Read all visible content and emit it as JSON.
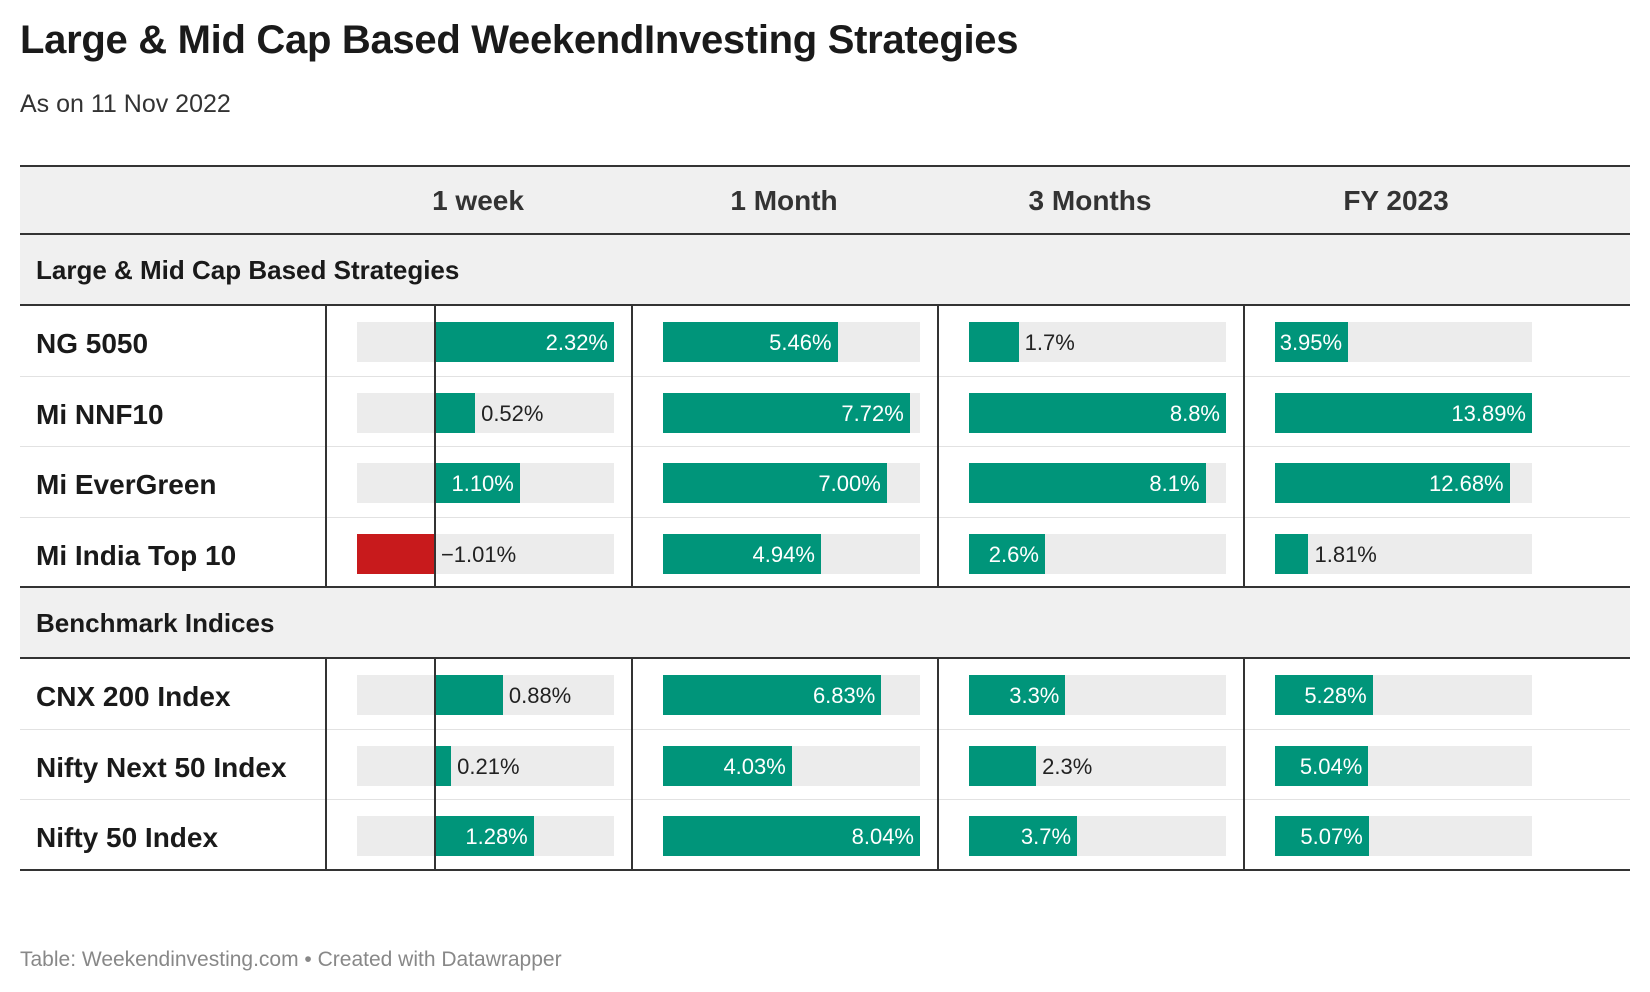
{
  "title": "Large & Mid Cap Based WeekendInvesting Strategies",
  "subtitle": "As on 11 Nov 2022",
  "footer": "Table: Weekendinvesting.com • Created with Datawrapper",
  "colors": {
    "positive": "#00957a",
    "negative": "#c81a1c",
    "track": "#ececec",
    "header_bg": "#f0f0f0"
  },
  "columns": [
    "1 week",
    "1 Month",
    "3 Months",
    "FY 2023"
  ],
  "chart_data": {
    "type": "table",
    "title": "Large & Mid Cap Based WeekendInvesting Strategies",
    "subtitle": "As on 11 Nov 2022",
    "columns": [
      "1 week",
      "1 Month",
      "3 Months",
      "FY 2023"
    ],
    "column_ranges": [
      [
        -1.01,
        2.32
      ],
      [
        0,
        8.04
      ],
      [
        0,
        8.8
      ],
      [
        0,
        13.89
      ]
    ],
    "groups": [
      {
        "name": "Large & Mid Cap Based Strategies",
        "rows": [
          {
            "name": "NG 5050",
            "values": [
              2.32,
              5.46,
              1.7,
              3.95
            ],
            "labels": [
              "2.32%",
              "5.46%",
              "1.7%",
              "3.95%"
            ]
          },
          {
            "name": "Mi NNF10",
            "values": [
              0.52,
              7.72,
              8.8,
              13.89
            ],
            "labels": [
              "0.52%",
              "7.72%",
              "8.8%",
              "13.89%"
            ]
          },
          {
            "name": "Mi EverGreen",
            "values": [
              1.1,
              7.0,
              8.1,
              12.68
            ],
            "labels": [
              "1.10%",
              "7.00%",
              "8.1%",
              "12.68%"
            ]
          },
          {
            "name": "Mi India Top 10",
            "values": [
              -1.01,
              4.94,
              2.6,
              1.81
            ],
            "labels": [
              "−1.01%",
              "4.94%",
              "2.6%",
              "1.81%"
            ]
          }
        ]
      },
      {
        "name": "Benchmark Indices",
        "rows": [
          {
            "name": "CNX 200 Index",
            "values": [
              0.88,
              6.83,
              3.3,
              5.28
            ],
            "labels": [
              "0.88%",
              "6.83%",
              "3.3%",
              "5.28%"
            ]
          },
          {
            "name": "Nifty Next 50 Index",
            "values": [
              0.21,
              4.03,
              2.3,
              5.04
            ],
            "labels": [
              "0.21%",
              "4.03%",
              "2.3%",
              "5.04%"
            ]
          },
          {
            "name": "Nifty 50 Index",
            "values": [
              1.28,
              8.04,
              3.7,
              5.07
            ],
            "labels": [
              "1.28%",
              "8.04%",
              "3.7%",
              "5.07%"
            ]
          }
        ]
      }
    ]
  }
}
